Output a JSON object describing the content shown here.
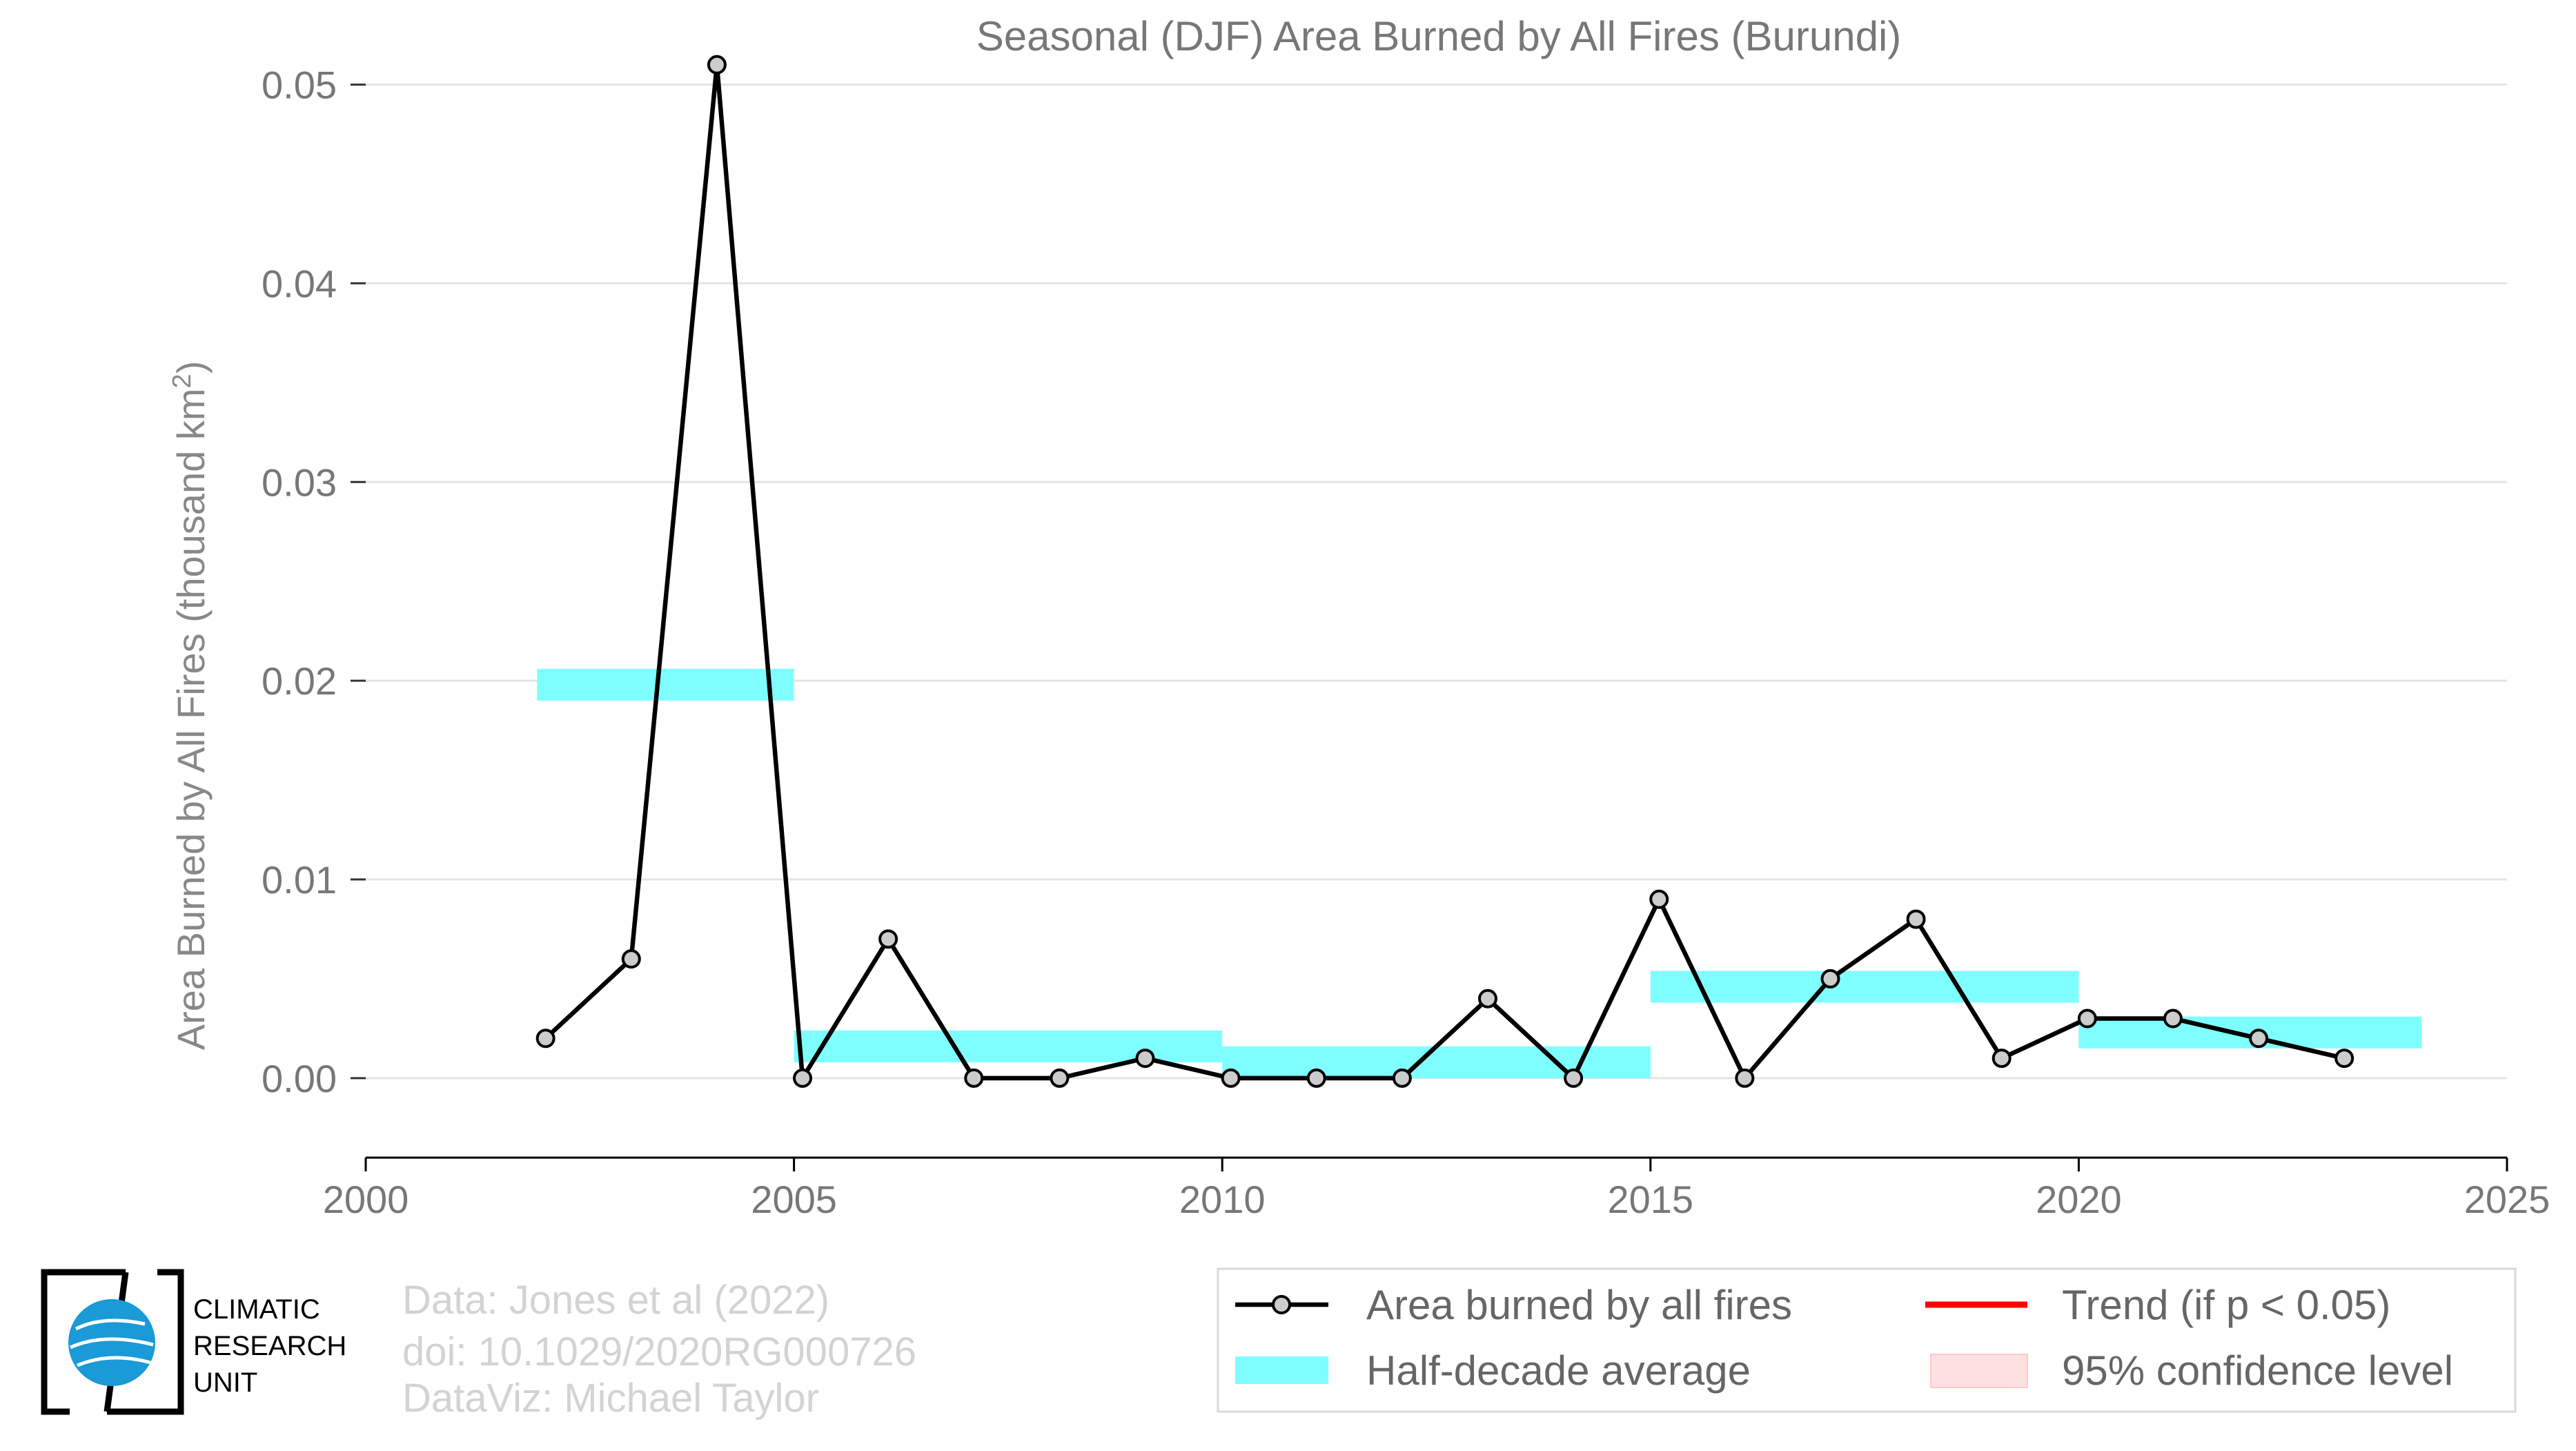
{
  "chart_data": {
    "type": "line",
    "title": "Seasonal (DJF) Area Burned by All Fires (Burundi)",
    "ylabel_main": "Area Burned by All Fires (thousand km",
    "ylabel_sup": "2",
    "ylabel_end": ")",
    "xlim": [
      2000,
      2025
    ],
    "ylim": [
      -0.004,
      0.052
    ],
    "x_ticks": [
      "2000",
      "2005",
      "2010",
      "2015",
      "2020",
      "2025"
    ],
    "y_ticks": [
      "0.00",
      "0.01",
      "0.02",
      "0.03",
      "0.04",
      "0.05"
    ],
    "grid": true,
    "series": [
      {
        "name": "Area burned by all fires",
        "color": "#000000",
        "x": [
          2002.1,
          2003.1,
          2004.1,
          2005.1,
          2006.1,
          2007.1,
          2008.1,
          2009.1,
          2010.1,
          2011.1,
          2012.1,
          2013.1,
          2014.1,
          2015.1,
          2016.1,
          2017.1,
          2018.1,
          2019.1,
          2020.1,
          2021.1,
          2022.1,
          2023.1
        ],
        "values": [
          0.002,
          0.006,
          0.051,
          0.0,
          0.007,
          0.0,
          0.0,
          0.001,
          0.0,
          0.0,
          0.0,
          0.004,
          0.0,
          0.009,
          0.0,
          0.005,
          0.008,
          0.001,
          0.003,
          0.003,
          0.002,
          0.001
        ]
      }
    ],
    "half_decade_average": {
      "name": "Half-decade average",
      "color": "#7ffeff",
      "segments": [
        {
          "x0": 2002.0,
          "x1": 2005.0,
          "value": 0.0198
        },
        {
          "x0": 2005.0,
          "x1": 2010.0,
          "value": 0.0016
        },
        {
          "x0": 2010.0,
          "x1": 2015.0,
          "value": 0.0008
        },
        {
          "x0": 2015.0,
          "x1": 2020.0,
          "value": 0.0046
        },
        {
          "x0": 2020.0,
          "x1": 2024.0,
          "value": 0.0023
        }
      ]
    },
    "legend": {
      "placement": "bottom-right",
      "items": [
        {
          "label": "Area burned by all fires",
          "color": "#000000"
        },
        {
          "label": "Trend (if p < 0.05)",
          "color": "#ff0000"
        },
        {
          "label": "Half-decade average",
          "color": "#7ffeff"
        },
        {
          "label": "95% confidence level",
          "color": "#ffe0e0"
        }
      ]
    }
  },
  "credits": {
    "line1": "Data: Jones et al (2022)",
    "line2": "doi: 10.1029/2020RG000726",
    "line3": "DataViz: Michael Taylor"
  },
  "logo": {
    "line1": "CLIMATIC",
    "line2": "RESEARCH",
    "line3": "UNIT",
    "globe_color": "#1a9ad6"
  }
}
